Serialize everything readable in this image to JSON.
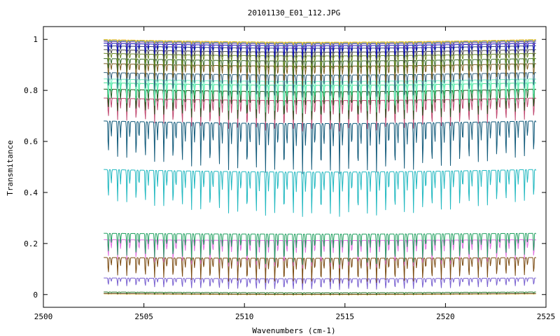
{
  "chart_data": {
    "type": "line",
    "title": "20101130_E01_112.JPG",
    "xlabel": "Wavenumbers (cm-1)",
    "ylabel": "Transmitance",
    "xlim": [
      2500,
      2525
    ],
    "ylim": [
      -0.05,
      1.05
    ],
    "x_ticks": [
      2500,
      2505,
      2510,
      2515,
      2520,
      2525
    ],
    "y_ticks": [
      0,
      0.2,
      0.4,
      0.6,
      0.8,
      1
    ],
    "y_tick_labels": [
      "0",
      "0.2",
      "0.4",
      "0.6",
      "0.8",
      "1"
    ],
    "x_range_data": [
      2503.0,
      2524.5
    ],
    "grid": false,
    "legend": "none",
    "line_period": 0.46,
    "series": [
      {
        "color": "#ffd21e",
        "baseline": 0.003,
        "depth": 0.002
      },
      {
        "color": "#5a3c14",
        "baseline": 0.004,
        "depth": 0.002
      },
      {
        "color": "#1e6e1e",
        "baseline": 0.01,
        "depth": 0.006
      },
      {
        "color": "#7860d0",
        "baseline": 0.065,
        "depth": 0.04
      },
      {
        "color": "#7a4a10",
        "baseline": 0.145,
        "depth": 0.09
      },
      {
        "color": "#e070e0",
        "baseline": 0.215,
        "depth": 0.1
      },
      {
        "color": "#20a060",
        "baseline": 0.24,
        "depth": 0.11
      },
      {
        "color": "#20b8c0",
        "baseline": 0.49,
        "depth": 0.16
      },
      {
        "color": "#115a7a",
        "baseline": 0.68,
        "depth": 0.18
      },
      {
        "color": "#c04870",
        "baseline": 0.77,
        "depth": 0.11
      },
      {
        "color": "#1e5a1e",
        "baseline": 0.805,
        "depth": 0.11
      },
      {
        "color": "#40e090",
        "baseline": 0.83,
        "depth": 0.1
      },
      {
        "color": "#70f0c0",
        "baseline": 0.845,
        "depth": 0.095
      },
      {
        "color": "#30607a",
        "baseline": 0.87,
        "depth": 0.08
      },
      {
        "color": "#7a5a1a",
        "baseline": 0.905,
        "depth": 0.07
      },
      {
        "color": "#3a6a2a",
        "baseline": 0.925,
        "depth": 0.06
      },
      {
        "color": "#6a8a20",
        "baseline": 0.945,
        "depth": 0.05
      },
      {
        "color": "#4a4a4a",
        "baseline": 0.96,
        "depth": 0.045
      },
      {
        "color": "#2a3a7a",
        "baseline": 0.975,
        "depth": 0.04
      },
      {
        "color": "#1010c0",
        "baseline": 0.985,
        "depth": 0.045
      },
      {
        "color": "#8040a0",
        "baseline": 0.992,
        "depth": 0.02
      },
      {
        "color": "#20a0a0",
        "baseline": 0.996,
        "depth": 0.015
      },
      {
        "color": "#f08080",
        "baseline": 0.998,
        "depth": 0.01
      },
      {
        "color": "#e0c020",
        "baseline": 0.999,
        "depth": 0.008
      }
    ]
  }
}
